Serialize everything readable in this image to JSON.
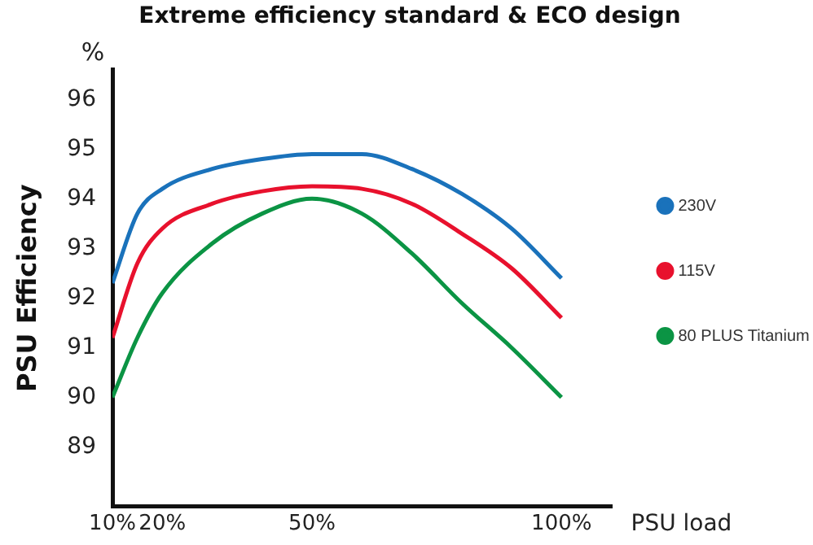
{
  "chart_data": {
    "type": "line",
    "title": "Extreme efficiency standard & ECO design",
    "xlabel": "PSU load",
    "ylabel": "PSU Efficiency",
    "annotations": [
      "%"
    ],
    "x": [
      10,
      15,
      20,
      30,
      40,
      50,
      60,
      70,
      80,
      90,
      100
    ],
    "xlim": [
      10,
      110
    ],
    "xticks": [
      {
        "value": 10,
        "label": "10%"
      },
      {
        "value": 20,
        "label": "20%"
      },
      {
        "value": 50,
        "label": "50%"
      },
      {
        "value": 100,
        "label": "100%"
      }
    ],
    "ylim": [
      87.8,
      96.6
    ],
    "yticks": [
      89,
      90,
      91,
      92,
      93,
      94,
      95,
      96
    ],
    "grid": false,
    "legend": "right",
    "marker": "none",
    "line_style": "solid",
    "series": [
      {
        "name": "230V",
        "color": "#1a72bb",
        "values": [
          92.3,
          93.7,
          94.2,
          94.6,
          94.8,
          94.9,
          94.9,
          94.6,
          94.1,
          93.4,
          92.4
        ]
      },
      {
        "name": "115V",
        "color": "#e8112d",
        "values": [
          91.2,
          92.7,
          93.4,
          93.9,
          94.15,
          94.25,
          94.2,
          93.9,
          93.3,
          92.6,
          91.6
        ]
      },
      {
        "name": "80 PLUS Titanium",
        "color": "#0b9444",
        "values": [
          90.0,
          91.2,
          92.1,
          93.1,
          93.7,
          94.0,
          93.7,
          92.9,
          91.9,
          91.0,
          90.0
        ]
      }
    ]
  }
}
